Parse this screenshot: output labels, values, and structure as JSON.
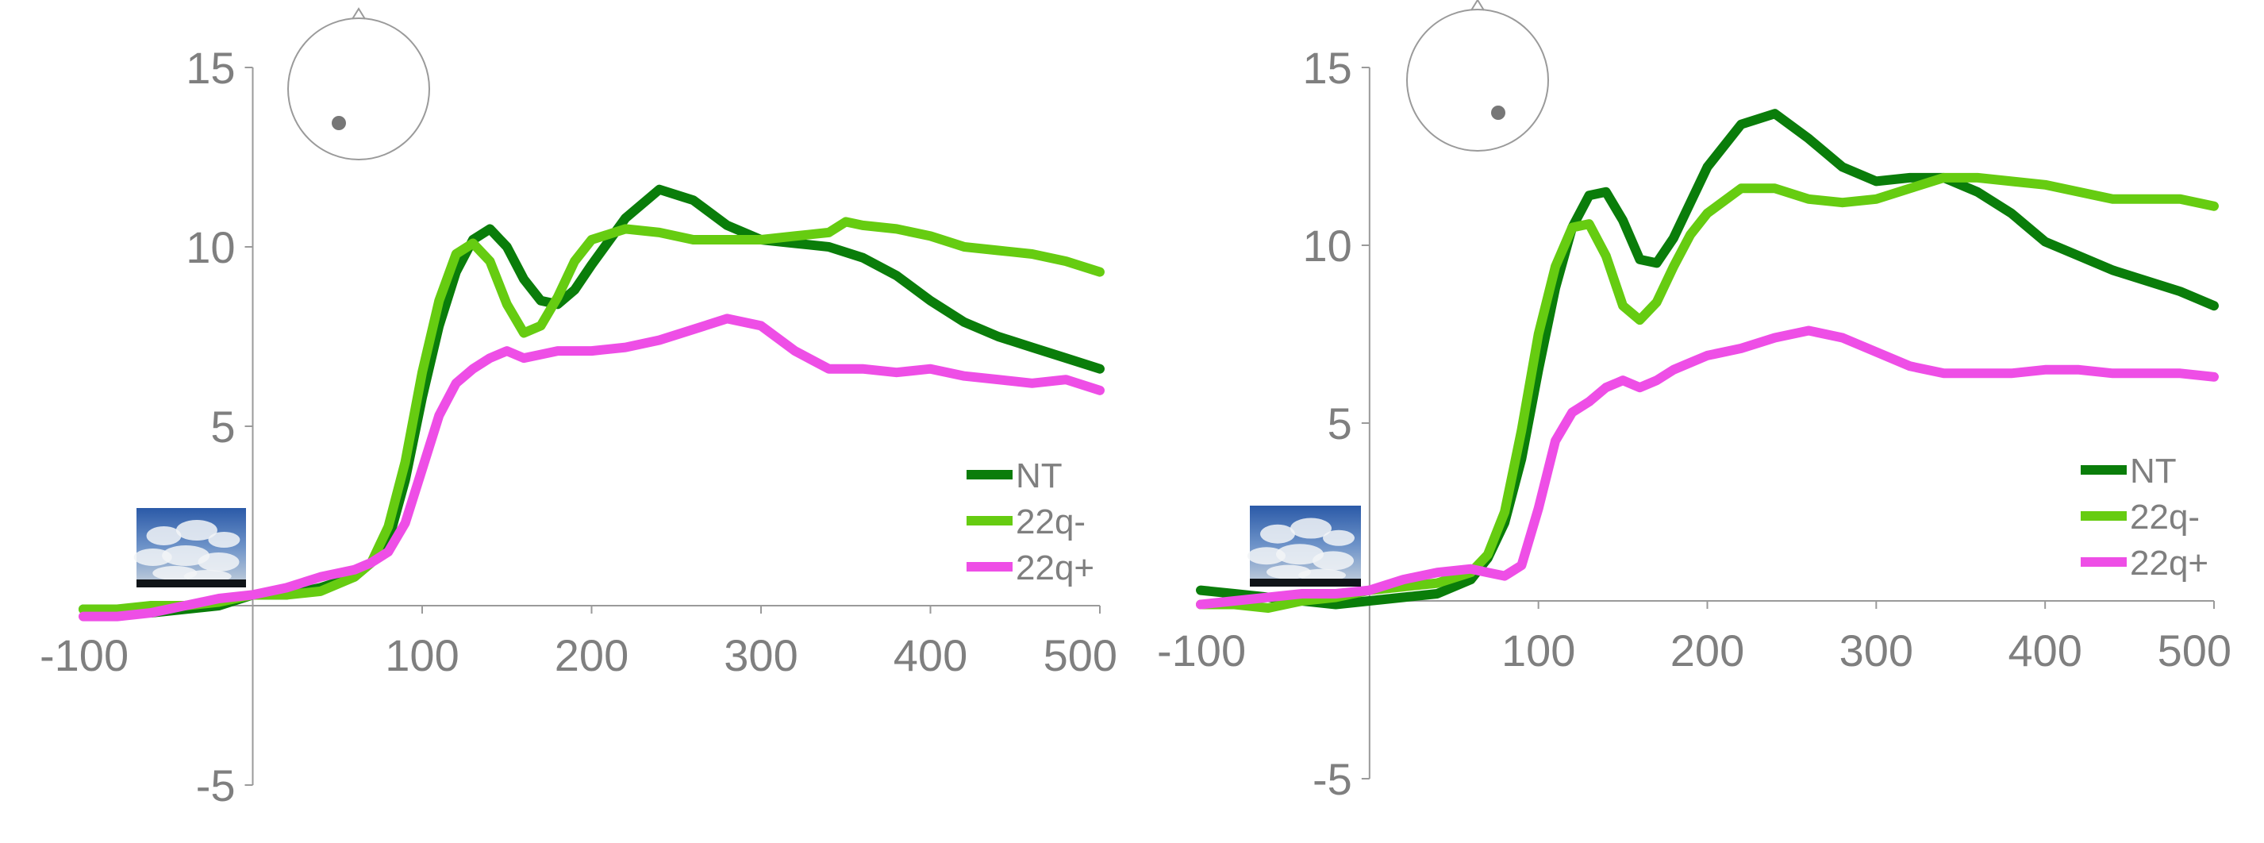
{
  "colors": {
    "NT": "#0a7d0a",
    "22q-": "#66cc11",
    "22q+": "#ee4ee6",
    "axis": "#9a9a9a",
    "text": "#7f7f7f"
  },
  "chart_data": [
    {
      "type": "line",
      "xlim": [
        -100,
        500
      ],
      "ylim": [
        -5,
        15
      ],
      "x_ticks": [
        "-100",
        "100",
        "200",
        "300",
        "400",
        "500"
      ],
      "y_ticks": [
        "15",
        "10",
        "5",
        "-5"
      ],
      "legend": [
        "NT",
        "22q-",
        "22q+"
      ],
      "legend_position": "bottom-right",
      "grid": false,
      "electrode_icon": "head-map-icon",
      "stimulus_icon": "cloud-sky-thumbnail",
      "series": [
        {
          "name": "NT",
          "x": [
            -100,
            -80,
            -60,
            -40,
            -20,
            0,
            20,
            40,
            60,
            70,
            80,
            90,
            100,
            110,
            120,
            130,
            140,
            150,
            160,
            170,
            180,
            190,
            200,
            220,
            240,
            260,
            280,
            300,
            320,
            340,
            360,
            380,
            400,
            420,
            440,
            460,
            480,
            500
          ],
          "y": [
            -0.1,
            -0.1,
            -0.2,
            -0.1,
            0.0,
            0.3,
            0.3,
            0.5,
            0.8,
            1.2,
            1.8,
            3.5,
            5.8,
            7.8,
            9.3,
            10.2,
            10.5,
            10.0,
            9.1,
            8.5,
            8.4,
            8.8,
            9.5,
            10.8,
            11.6,
            11.3,
            10.6,
            10.2,
            10.1,
            10.0,
            9.7,
            9.2,
            8.5,
            7.9,
            7.5,
            7.2,
            6.9,
            6.6
          ]
        },
        {
          "name": "22q-",
          "x": [
            -100,
            -80,
            -60,
            -40,
            -20,
            0,
            20,
            40,
            60,
            70,
            80,
            90,
            100,
            110,
            120,
            130,
            140,
            150,
            160,
            170,
            180,
            190,
            200,
            220,
            240,
            260,
            280,
            300,
            320,
            340,
            350,
            360,
            380,
            400,
            420,
            440,
            460,
            480,
            500
          ],
          "y": [
            -0.1,
            -0.1,
            0.0,
            0.0,
            0.1,
            0.3,
            0.3,
            0.4,
            0.8,
            1.2,
            2.2,
            4.0,
            6.5,
            8.5,
            9.8,
            10.1,
            9.6,
            8.4,
            7.6,
            7.8,
            8.6,
            9.6,
            10.2,
            10.5,
            10.4,
            10.2,
            10.2,
            10.2,
            10.3,
            10.4,
            10.7,
            10.6,
            10.5,
            10.3,
            10.0,
            9.9,
            9.8,
            9.6,
            9.3
          ]
        },
        {
          "name": "22q+",
          "x": [
            -100,
            -80,
            -60,
            -40,
            -20,
            0,
            20,
            40,
            60,
            70,
            80,
            90,
            100,
            110,
            120,
            130,
            140,
            150,
            160,
            170,
            180,
            190,
            200,
            220,
            240,
            260,
            280,
            300,
            320,
            340,
            360,
            380,
            400,
            420,
            440,
            460,
            480,
            500
          ],
          "y": [
            -0.3,
            -0.3,
            -0.2,
            0.0,
            0.2,
            0.3,
            0.5,
            0.8,
            1.0,
            1.2,
            1.5,
            2.3,
            3.8,
            5.3,
            6.2,
            6.6,
            6.9,
            7.1,
            6.9,
            7.0,
            7.1,
            7.1,
            7.1,
            7.2,
            7.4,
            7.7,
            8.0,
            7.8,
            7.1,
            6.6,
            6.6,
            6.5,
            6.6,
            6.4,
            6.3,
            6.2,
            6.3,
            6.0
          ]
        }
      ]
    },
    {
      "type": "line",
      "xlim": [
        -100,
        500
      ],
      "ylim": [
        -5,
        15
      ],
      "x_ticks": [
        "-100",
        "100",
        "200",
        "300",
        "400",
        "500"
      ],
      "y_ticks": [
        "15",
        "10",
        "5",
        "-5"
      ],
      "legend": [
        "NT",
        "22q-",
        "22q+"
      ],
      "legend_position": "bottom-right",
      "grid": false,
      "electrode_icon": "head-map-icon",
      "stimulus_icon": "cloud-sky-thumbnail",
      "series": [
        {
          "name": "NT",
          "x": [
            -100,
            -80,
            -60,
            -40,
            -20,
            0,
            20,
            40,
            60,
            70,
            80,
            90,
            100,
            110,
            120,
            130,
            140,
            150,
            160,
            170,
            180,
            190,
            200,
            220,
            240,
            260,
            280,
            300,
            320,
            340,
            360,
            380,
            400,
            420,
            440,
            460,
            480,
            500
          ],
          "y": [
            0.3,
            0.2,
            0.1,
            0.0,
            -0.1,
            0.0,
            0.1,
            0.2,
            0.6,
            1.2,
            2.2,
            4.0,
            6.5,
            8.8,
            10.5,
            11.4,
            11.5,
            10.7,
            9.6,
            9.5,
            10.2,
            11.2,
            12.2,
            13.4,
            13.7,
            13.0,
            12.2,
            11.8,
            11.9,
            11.9,
            11.5,
            10.9,
            10.1,
            9.7,
            9.3,
            9.0,
            8.7,
            8.3
          ]
        },
        {
          "name": "22q-",
          "x": [
            -100,
            -80,
            -60,
            -40,
            -20,
            0,
            20,
            40,
            60,
            70,
            80,
            90,
            100,
            110,
            120,
            130,
            140,
            150,
            160,
            170,
            180,
            190,
            200,
            220,
            240,
            260,
            280,
            300,
            320,
            340,
            360,
            380,
            400,
            420,
            440,
            460,
            480,
            500
          ],
          "y": [
            -0.1,
            -0.1,
            -0.2,
            0.0,
            0.1,
            0.3,
            0.4,
            0.5,
            0.8,
            1.3,
            2.5,
            4.8,
            7.5,
            9.4,
            10.5,
            10.6,
            9.7,
            8.3,
            7.9,
            8.4,
            9.4,
            10.3,
            10.9,
            11.6,
            11.6,
            11.3,
            11.2,
            11.3,
            11.6,
            11.9,
            11.9,
            11.8,
            11.7,
            11.5,
            11.3,
            11.3,
            11.3,
            11.1
          ]
        },
        {
          "name": "22q+",
          "x": [
            -100,
            -80,
            -60,
            -40,
            -20,
            0,
            20,
            40,
            60,
            70,
            80,
            90,
            100,
            110,
            120,
            130,
            140,
            150,
            160,
            170,
            180,
            190,
            200,
            220,
            240,
            260,
            280,
            300,
            320,
            340,
            360,
            380,
            400,
            420,
            440,
            460,
            480,
            500
          ],
          "y": [
            -0.1,
            0.0,
            0.1,
            0.2,
            0.2,
            0.3,
            0.6,
            0.8,
            0.9,
            0.8,
            0.7,
            1.0,
            2.6,
            4.5,
            5.3,
            5.6,
            6.0,
            6.2,
            6.0,
            6.2,
            6.5,
            6.7,
            6.9,
            7.1,
            7.4,
            7.6,
            7.4,
            7.0,
            6.6,
            6.4,
            6.4,
            6.4,
            6.5,
            6.5,
            6.4,
            6.4,
            6.4,
            6.3
          ]
        }
      ]
    }
  ]
}
